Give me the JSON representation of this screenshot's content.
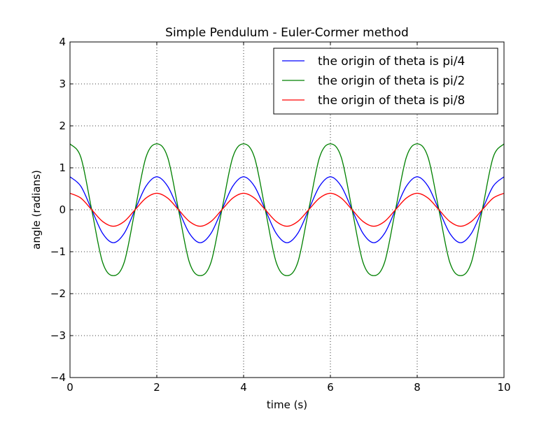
{
  "chart_data": {
    "type": "line",
    "title": "Simple Pendulum - Euler-Cormer method",
    "xlabel": "time (s)",
    "ylabel": "angle (radians)",
    "xlim": [
      0,
      10
    ],
    "ylim": [
      -4,
      4
    ],
    "xticks": [
      0,
      2,
      4,
      6,
      8,
      10
    ],
    "xtick_labels": [
      "0",
      "2",
      "4",
      "6",
      "8",
      "10"
    ],
    "yticks": [
      -4,
      -3,
      -2,
      -1,
      0,
      1,
      2,
      3,
      4
    ],
    "ytick_labels": [
      "−4",
      "−3",
      "−2",
      "−1",
      "0",
      "1",
      "2",
      "3",
      "4"
    ],
    "grid": true,
    "legend_position": "top-right",
    "series": [
      {
        "name": "the origin of theta is pi/4",
        "color": "#0000ff",
        "x": [
          0,
          0.25,
          0.5,
          0.75,
          1,
          1.25,
          1.5,
          1.75,
          2,
          2.25,
          2.5,
          2.75,
          3,
          3.25,
          3.5,
          3.75,
          4,
          4.25,
          4.5,
          4.75,
          5,
          5.25,
          5.5,
          5.75,
          6,
          6.25,
          6.5,
          6.75,
          7,
          7.25,
          7.5,
          7.75,
          8,
          8.25,
          8.5,
          8.75,
          9,
          9.25,
          9.5,
          9.75,
          10
        ],
        "y": [
          0.785,
          0.56,
          0.0,
          -0.56,
          -0.785,
          -0.56,
          0.0,
          0.56,
          0.785,
          0.56,
          0.0,
          -0.56,
          -0.785,
          -0.56,
          0.0,
          0.56,
          0.785,
          0.56,
          0.0,
          -0.56,
          -0.785,
          -0.56,
          0.0,
          0.56,
          0.785,
          0.56,
          0.0,
          -0.56,
          -0.785,
          -0.56,
          0.0,
          0.56,
          0.785,
          0.56,
          0.0,
          -0.56,
          -0.785,
          -0.56,
          0.0,
          0.56,
          0.785
        ]
      },
      {
        "name": "the origin of theta is pi/2",
        "color": "#008000",
        "x": [
          0,
          0.25,
          0.5,
          0.75,
          1,
          1.25,
          1.5,
          1.75,
          2,
          2.25,
          2.5,
          2.75,
          3,
          3.25,
          3.5,
          3.75,
          4,
          4.25,
          4.5,
          4.75,
          5,
          5.25,
          5.5,
          5.75,
          6,
          6.25,
          6.5,
          6.75,
          7,
          7.25,
          7.5,
          7.75,
          8,
          8.25,
          8.5,
          8.75,
          9,
          9.25,
          9.5,
          9.75,
          10
        ],
        "y": [
          1.571,
          1.25,
          0.0,
          -1.25,
          -1.571,
          -1.25,
          0.0,
          1.25,
          1.571,
          1.25,
          0.0,
          -1.25,
          -1.571,
          -1.25,
          0.0,
          1.25,
          1.571,
          1.25,
          0.0,
          -1.25,
          -1.571,
          -1.25,
          0.0,
          1.25,
          1.571,
          1.25,
          0.0,
          -1.25,
          -1.571,
          -1.25,
          0.0,
          1.25,
          1.571,
          1.25,
          0.0,
          -1.25,
          -1.571,
          -1.25,
          0.0,
          1.25,
          1.571
        ]
      },
      {
        "name": "the origin of theta is pi/8",
        "color": "#ff0000",
        "x": [
          0,
          0.25,
          0.5,
          0.75,
          1,
          1.25,
          1.5,
          1.75,
          2,
          2.25,
          2.5,
          2.75,
          3,
          3.25,
          3.5,
          3.75,
          4,
          4.25,
          4.5,
          4.75,
          5,
          5.25,
          5.5,
          5.75,
          6,
          6.25,
          6.5,
          6.75,
          7,
          7.25,
          7.5,
          7.75,
          8,
          8.25,
          8.5,
          8.75,
          9,
          9.25,
          9.5,
          9.75,
          10
        ],
        "y": [
          0.393,
          0.278,
          0.0,
          -0.278,
          -0.393,
          -0.278,
          0.0,
          0.278,
          0.393,
          0.278,
          0.0,
          -0.278,
          -0.393,
          -0.278,
          0.0,
          0.278,
          0.393,
          0.278,
          0.0,
          -0.278,
          -0.393,
          -0.278,
          0.0,
          0.278,
          0.393,
          0.278,
          0.0,
          -0.278,
          -0.393,
          -0.278,
          0.0,
          0.278,
          0.393,
          0.278,
          0.0,
          -0.278,
          -0.393,
          -0.278,
          0.0,
          0.278,
          0.393
        ]
      }
    ]
  }
}
